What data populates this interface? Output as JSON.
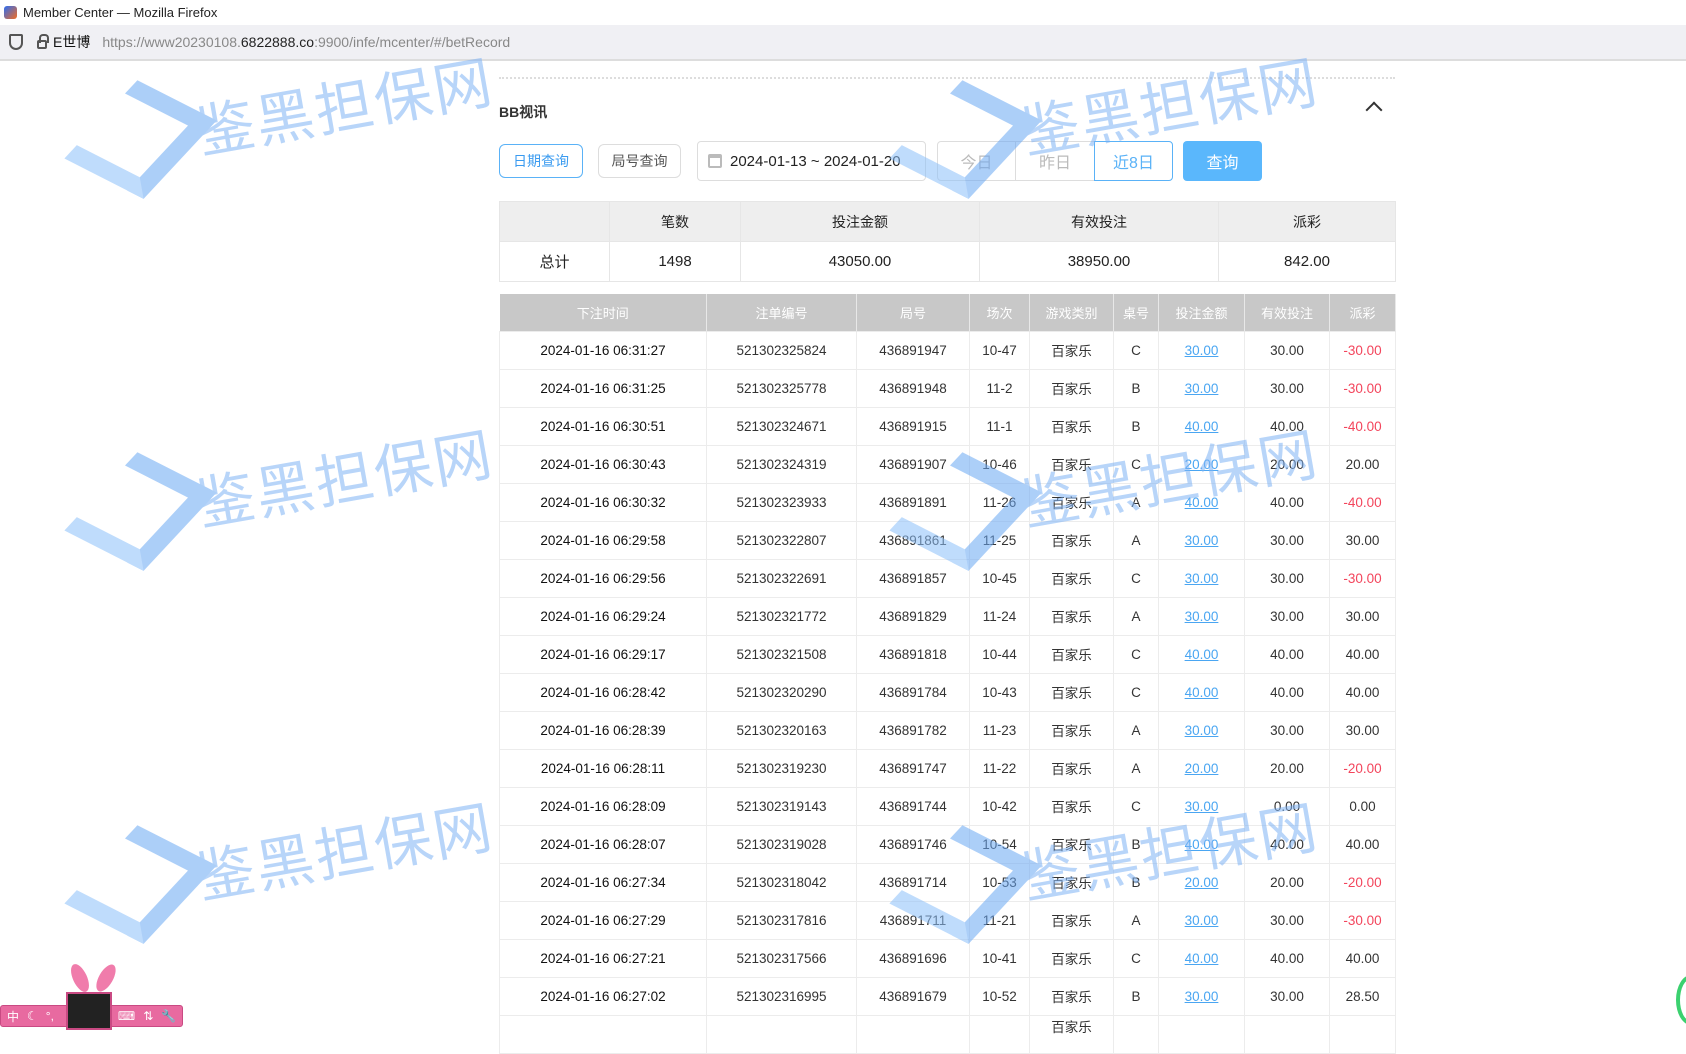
{
  "browser": {
    "title": "Member Center — Mozilla Firefox",
    "site_label": "E世博",
    "url_prefix": "https://www20230108.",
    "url_domain": "6822888.co",
    "url_suffix": ":9900/infe/mcenter/#/betRecord"
  },
  "watermark": {
    "text": "鉴黑担保网"
  },
  "section": {
    "title": "BB视讯"
  },
  "filters": {
    "date_query": "日期查询",
    "round_query": "局号查询",
    "date_range": "2024-01-13 ~ 2024-01-20",
    "today": "今日",
    "yesterday": "昨日",
    "last8": "近8日",
    "query": "查询"
  },
  "summary": {
    "headers": [
      "",
      "笔数",
      "投注金额",
      "有效投注",
      "派彩"
    ],
    "row": [
      "总计",
      "1498",
      "43050.00",
      "38950.00",
      "842.00"
    ]
  },
  "records": {
    "headers": [
      "下注时间",
      "注单编号",
      "局号",
      "场次",
      "游戏类别",
      "桌号",
      "投注金额",
      "有效投注",
      "派彩"
    ],
    "rows": [
      [
        "2024-01-16 06:31:27",
        "521302325824",
        "436891947",
        "10-47",
        "百家乐",
        "C",
        "30.00",
        "30.00",
        "-30.00"
      ],
      [
        "2024-01-16 06:31:25",
        "521302325778",
        "436891948",
        "11-2",
        "百家乐",
        "B",
        "30.00",
        "30.00",
        "-30.00"
      ],
      [
        "2024-01-16 06:30:51",
        "521302324671",
        "436891915",
        "11-1",
        "百家乐",
        "B",
        "40.00",
        "40.00",
        "-40.00"
      ],
      [
        "2024-01-16 06:30:43",
        "521302324319",
        "436891907",
        "10-46",
        "百家乐",
        "C",
        "20.00",
        "20.00",
        "20.00"
      ],
      [
        "2024-01-16 06:30:32",
        "521302323933",
        "436891891",
        "11-26",
        "百家乐",
        "A",
        "40.00",
        "40.00",
        "-40.00"
      ],
      [
        "2024-01-16 06:29:58",
        "521302322807",
        "436891861",
        "11-25",
        "百家乐",
        "A",
        "30.00",
        "30.00",
        "30.00"
      ],
      [
        "2024-01-16 06:29:56",
        "521302322691",
        "436891857",
        "10-45",
        "百家乐",
        "C",
        "30.00",
        "30.00",
        "-30.00"
      ],
      [
        "2024-01-16 06:29:24",
        "521302321772",
        "436891829",
        "11-24",
        "百家乐",
        "A",
        "30.00",
        "30.00",
        "30.00"
      ],
      [
        "2024-01-16 06:29:17",
        "521302321508",
        "436891818",
        "10-44",
        "百家乐",
        "C",
        "40.00",
        "40.00",
        "40.00"
      ],
      [
        "2024-01-16 06:28:42",
        "521302320290",
        "436891784",
        "10-43",
        "百家乐",
        "C",
        "40.00",
        "40.00",
        "40.00"
      ],
      [
        "2024-01-16 06:28:39",
        "521302320163",
        "436891782",
        "11-23",
        "百家乐",
        "A",
        "30.00",
        "30.00",
        "30.00"
      ],
      [
        "2024-01-16 06:28:11",
        "521302319230",
        "436891747",
        "11-22",
        "百家乐",
        "A",
        "20.00",
        "20.00",
        "-20.00"
      ],
      [
        "2024-01-16 06:28:09",
        "521302319143",
        "436891744",
        "10-42",
        "百家乐",
        "C",
        "30.00",
        "0.00",
        "0.00"
      ],
      [
        "2024-01-16 06:28:07",
        "521302319028",
        "436891746",
        "10-54",
        "百家乐",
        "B",
        "40.00",
        "40.00",
        "40.00"
      ],
      [
        "2024-01-16 06:27:34",
        "521302318042",
        "436891714",
        "10-53",
        "百家乐",
        "B",
        "20.00",
        "20.00",
        "-20.00"
      ],
      [
        "2024-01-16 06:27:29",
        "521302317816",
        "436891711",
        "11-21",
        "百家乐",
        "A",
        "30.00",
        "30.00",
        "-30.00"
      ],
      [
        "2024-01-16 06:27:21",
        "521302317566",
        "436891696",
        "10-41",
        "百家乐",
        "C",
        "40.00",
        "40.00",
        "40.00"
      ],
      [
        "2024-01-16 06:27:02",
        "521302316995",
        "436891679",
        "10-52",
        "百家乐",
        "B",
        "30.00",
        "30.00",
        "28.50"
      ],
      [
        "",
        "",
        "",
        "",
        "百家乐",
        "",
        "",
        "",
        ""
      ]
    ]
  },
  "ime": {
    "mode": "中"
  },
  "colors": {
    "accent": "#5ab7fc",
    "negative": "#f3455c",
    "link": "#4aa6f2"
  }
}
